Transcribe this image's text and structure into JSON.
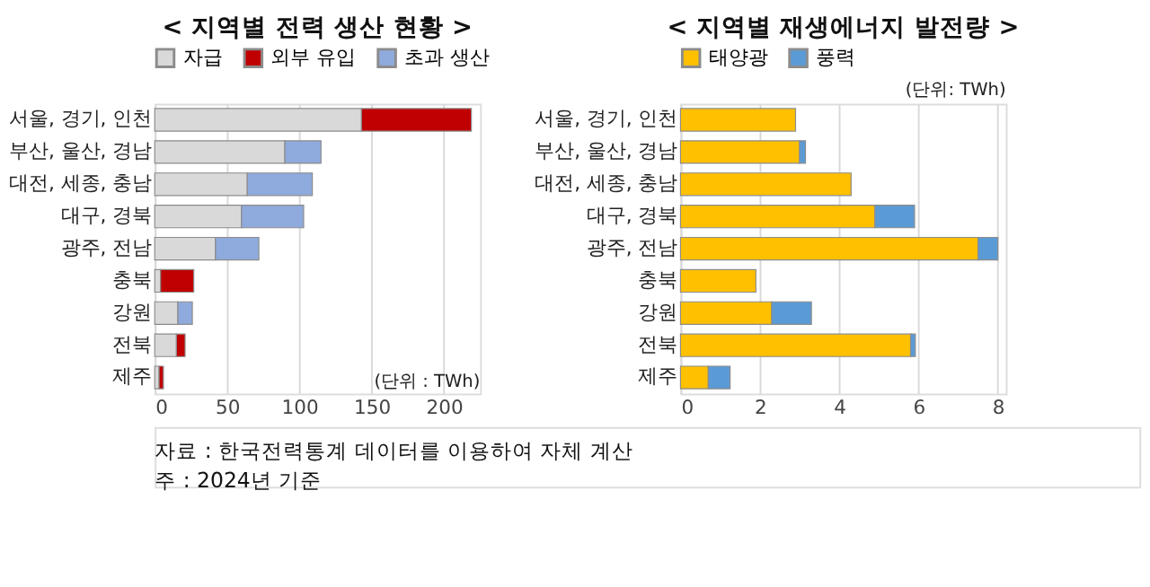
{
  "chart_data": [
    {
      "type": "bar",
      "orientation": "horizontal",
      "stacked": true,
      "title": "< 지역별 전력 생산 현황 >",
      "categories": [
        "서울, 경기, 인천",
        "부산, 울산, 경남",
        "대전, 세종, 충남",
        "대구, 경북",
        "광주, 전남",
        "충북",
        "강원",
        "전북",
        "제주"
      ],
      "series": [
        {
          "name": "자급",
          "color": "#d9d9d9",
          "values": [
            143,
            90,
            64,
            60,
            42,
            4,
            16,
            15,
            3
          ]
        },
        {
          "name": "외부 유입",
          "color": "#c00000",
          "values": [
            76,
            null,
            null,
            null,
            null,
            23,
            null,
            6,
            3
          ]
        },
        {
          "name": "초과 생산",
          "color": "#8faadc",
          "values": [
            null,
            25,
            45,
            43,
            30,
            null,
            10,
            null,
            null
          ]
        }
      ],
      "xlim": [
        0,
        225
      ],
      "xticks": [
        0,
        50,
        100,
        150,
        200
      ],
      "grid": "x",
      "legend": "top",
      "annotations": [
        "(단위 : TWh)",
        "자료 : 한국전력통계 데이터를 이용하여 자체 계산",
        "주 : 2024년 기준"
      ]
    },
    {
      "type": "bar",
      "orientation": "horizontal",
      "stacked": true,
      "title": "< 지역별 재생에너지 발전량 >",
      "categories": [
        "서울, 경기, 인천",
        "부산, 울산, 경남",
        "대전, 세종, 충남",
        "대구, 경북",
        "광주, 전남",
        "충북",
        "강원",
        "전북",
        "제주"
      ],
      "series": [
        {
          "name": "태양광",
          "color": "#ffc000",
          "values": [
            2.9,
            3.0,
            4.3,
            4.9,
            7.5,
            1.9,
            2.3,
            5.8,
            0.7
          ]
        },
        {
          "name": "풍력",
          "color": "#5b9bd5",
          "values": [
            null,
            0.15,
            null,
            1.0,
            0.5,
            null,
            1.0,
            0.12,
            0.55
          ]
        }
      ],
      "xlim": [
        0,
        8.2
      ],
      "xticks": [
        0,
        2,
        4,
        6,
        8
      ],
      "grid": "x",
      "legend": "top",
      "annotations": [
        "(단위: TWh)"
      ]
    }
  ]
}
